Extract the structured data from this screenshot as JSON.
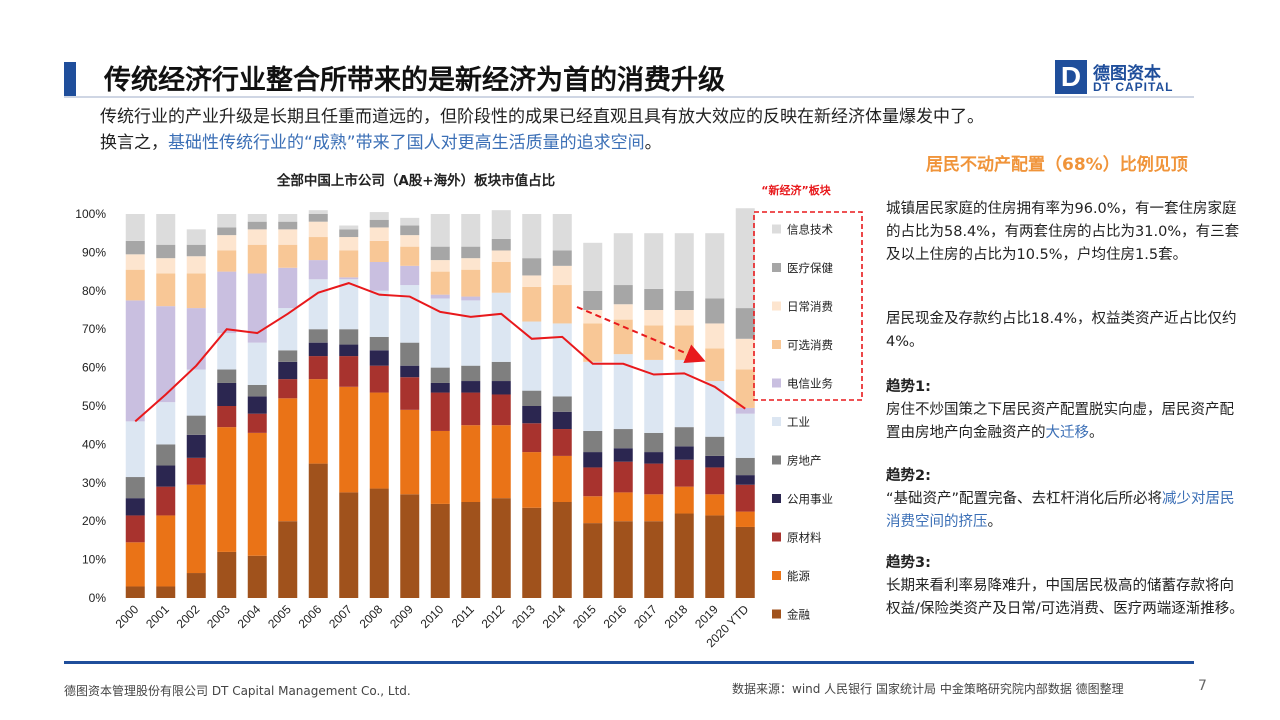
{
  "slide": {
    "title": "传统经济行业整合所带来的是新经济为首的消费升级",
    "intro_line1": "传统行业的产业升级是长期且任重而道远的，但阶段性的成果已经直观且具有放大效应的反映在新经济体量爆发中了。",
    "intro_line2_prefix": "换言之，",
    "intro_line2_highlight": "基础性传统行业的“成熟”带来了国人对更高生活质量的追求空间",
    "intro_line2_suffix": "。",
    "logo": {
      "cn": "德图资本",
      "en": "DT CAPITAL",
      "mark": "D"
    },
    "footer_left": "德图资本管理股份有限公司 DT Capital Management Co., Ltd.",
    "footer_right": "数据来源：wind 人民银行 国家统计局 中金策略研究院内部数据 德图整理",
    "page_number": "7"
  },
  "right_panel": {
    "heading": "居民不动产配置（68%）比例见顶",
    "p1": "城镇居民家庭的住房拥有率为96.0%，有一套住房家庭的占比为58.4%，有两套住房的占比为31.0%，有三套及以上住房的占比为10.5%，户均住房1.5套。",
    "p2": "居民现金及存款约占比18.4%，权益类资产近占比仅约4%。",
    "trend1_title": "趋势1:",
    "trend1_text_a": "房住不炒国策之下居民资产配置脱实向虚，居民资产配置由房地产向金融资产的",
    "trend1_hl": "大迁移",
    "trend1_text_b": "。",
    "trend2_title": "趋势2:",
    "trend2_text_a": "“基础资产”配置完备、去杠杆消化后所必将",
    "trend2_hl": "减少对居民消费空间的挤压",
    "trend2_text_b": "。",
    "trend3_title": "趋势3:",
    "trend3_text": "长期来看利率易降难升，中国居民极高的储蓄存款将向权益/保险类资产及日常/可选消费、医疗两端逐渐推移。"
  },
  "chart_data": {
    "type": "bar",
    "stacked": true,
    "title": "全部中国上市公司（A股+海外）板块市值占比",
    "ylim": [
      0,
      100
    ],
    "yticks": [
      "0%",
      "10%",
      "20%",
      "30%",
      "40%",
      "50%",
      "60%",
      "70%",
      "80%",
      "90%",
      "100%"
    ],
    "categories": [
      "2000",
      "2001",
      "2002",
      "2003",
      "2004",
      "2005",
      "2006",
      "2007",
      "2008",
      "2009",
      "2010",
      "2011",
      "2012",
      "2013",
      "2014",
      "2015",
      "2016",
      "2017",
      "2018",
      "2019",
      "2020 YTD"
    ],
    "series": [
      {
        "name": "金融",
        "color": "#a0521c",
        "values": [
          3,
          3,
          6.5,
          12,
          11,
          20,
          35,
          27.5,
          28.5,
          27,
          24.5,
          25,
          26,
          23.5,
          25,
          19.5,
          20,
          20,
          22,
          21.5,
          18.5
        ]
      },
      {
        "name": "能源",
        "color": "#ea7317",
        "values": [
          11.5,
          18.5,
          23,
          32.5,
          32,
          32,
          22,
          27.5,
          25,
          22,
          19,
          20,
          19,
          14.5,
          12,
          7,
          7.5,
          7,
          7,
          5.5,
          4
        ]
      },
      {
        "name": "原材料",
        "color": "#a8332e",
        "values": [
          7,
          7.5,
          7,
          5.5,
          5,
          5,
          6,
          8,
          7,
          8.5,
          10,
          8.5,
          8,
          7.5,
          7,
          7.5,
          8,
          8,
          7,
          7,
          7
        ]
      },
      {
        "name": "公用事业",
        "color": "#2b2650",
        "values": [
          4.5,
          5.5,
          6,
          6,
          4.5,
          4.5,
          3.5,
          3,
          4,
          3,
          2.5,
          3,
          3.5,
          4.5,
          4.5,
          4,
          3.5,
          3,
          3.5,
          3,
          2.5
        ]
      },
      {
        "name": "房地产",
        "color": "#7f7f7f",
        "values": [
          5.5,
          5.5,
          5,
          3.5,
          3,
          3,
          3.5,
          4,
          3.5,
          6,
          4,
          4,
          5,
          4,
          4,
          5.5,
          5,
          5,
          5,
          5,
          4.5
        ]
      },
      {
        "name": "工业",
        "color": "#dce6f2",
        "values": [
          14.5,
          11,
          12,
          9.5,
          11,
          11,
          13,
          13,
          12,
          15,
          18,
          17,
          18,
          18,
          19,
          18,
          19.5,
          19,
          17.5,
          14.5,
          11.5
        ]
      },
      {
        "name": "电信业务",
        "color": "#c9bfe0",
        "values": [
          31.5,
          25,
          16,
          16,
          18,
          10.5,
          5,
          0.5,
          7.5,
          5,
          1,
          1,
          0,
          0,
          0,
          0,
          0,
          0,
          0,
          0,
          1.5
        ]
      },
      {
        "name": "可选消费",
        "color": "#f8c796",
        "values": [
          8,
          8.5,
          9,
          5.5,
          7.5,
          6,
          6,
          7,
          5.5,
          5,
          6,
          7,
          8,
          9,
          10,
          10,
          9,
          9,
          9,
          8.5,
          10
        ]
      },
      {
        "name": "日常消费",
        "color": "#fde5cf",
        "values": [
          4,
          4,
          4.5,
          4,
          4,
          4,
          4,
          3.5,
          3.5,
          3,
          3,
          3,
          3,
          3,
          5,
          3.5,
          4,
          4,
          4,
          6.5,
          8
        ]
      },
      {
        "name": "医疗保健",
        "color": "#a6a6a6",
        "values": [
          3.5,
          3.5,
          3,
          2,
          2,
          2,
          2,
          2,
          2,
          2.5,
          3.5,
          3,
          3,
          4.5,
          4,
          5,
          5,
          5.5,
          5,
          6.5,
          8
        ]
      },
      {
        "name": "信息技术",
        "color": "#dcdcdc",
        "values": [
          7,
          8,
          4,
          3.5,
          2,
          2,
          1,
          1,
          2,
          2,
          8.5,
          8.5,
          7.5,
          11.5,
          9.5,
          12.5,
          13.5,
          14.5,
          15,
          17,
          26
        ]
      }
    ],
    "line": {
      "color": "#e8191c",
      "values": [
        46,
        53,
        60.5,
        70,
        69,
        74,
        79.5,
        82,
        79,
        78.5,
        74.5,
        73.2,
        74,
        67.5,
        68,
        61,
        61,
        58.2,
        58.5,
        55,
        49.3
      ]
    },
    "legend_title": "“新经济”板块"
  }
}
